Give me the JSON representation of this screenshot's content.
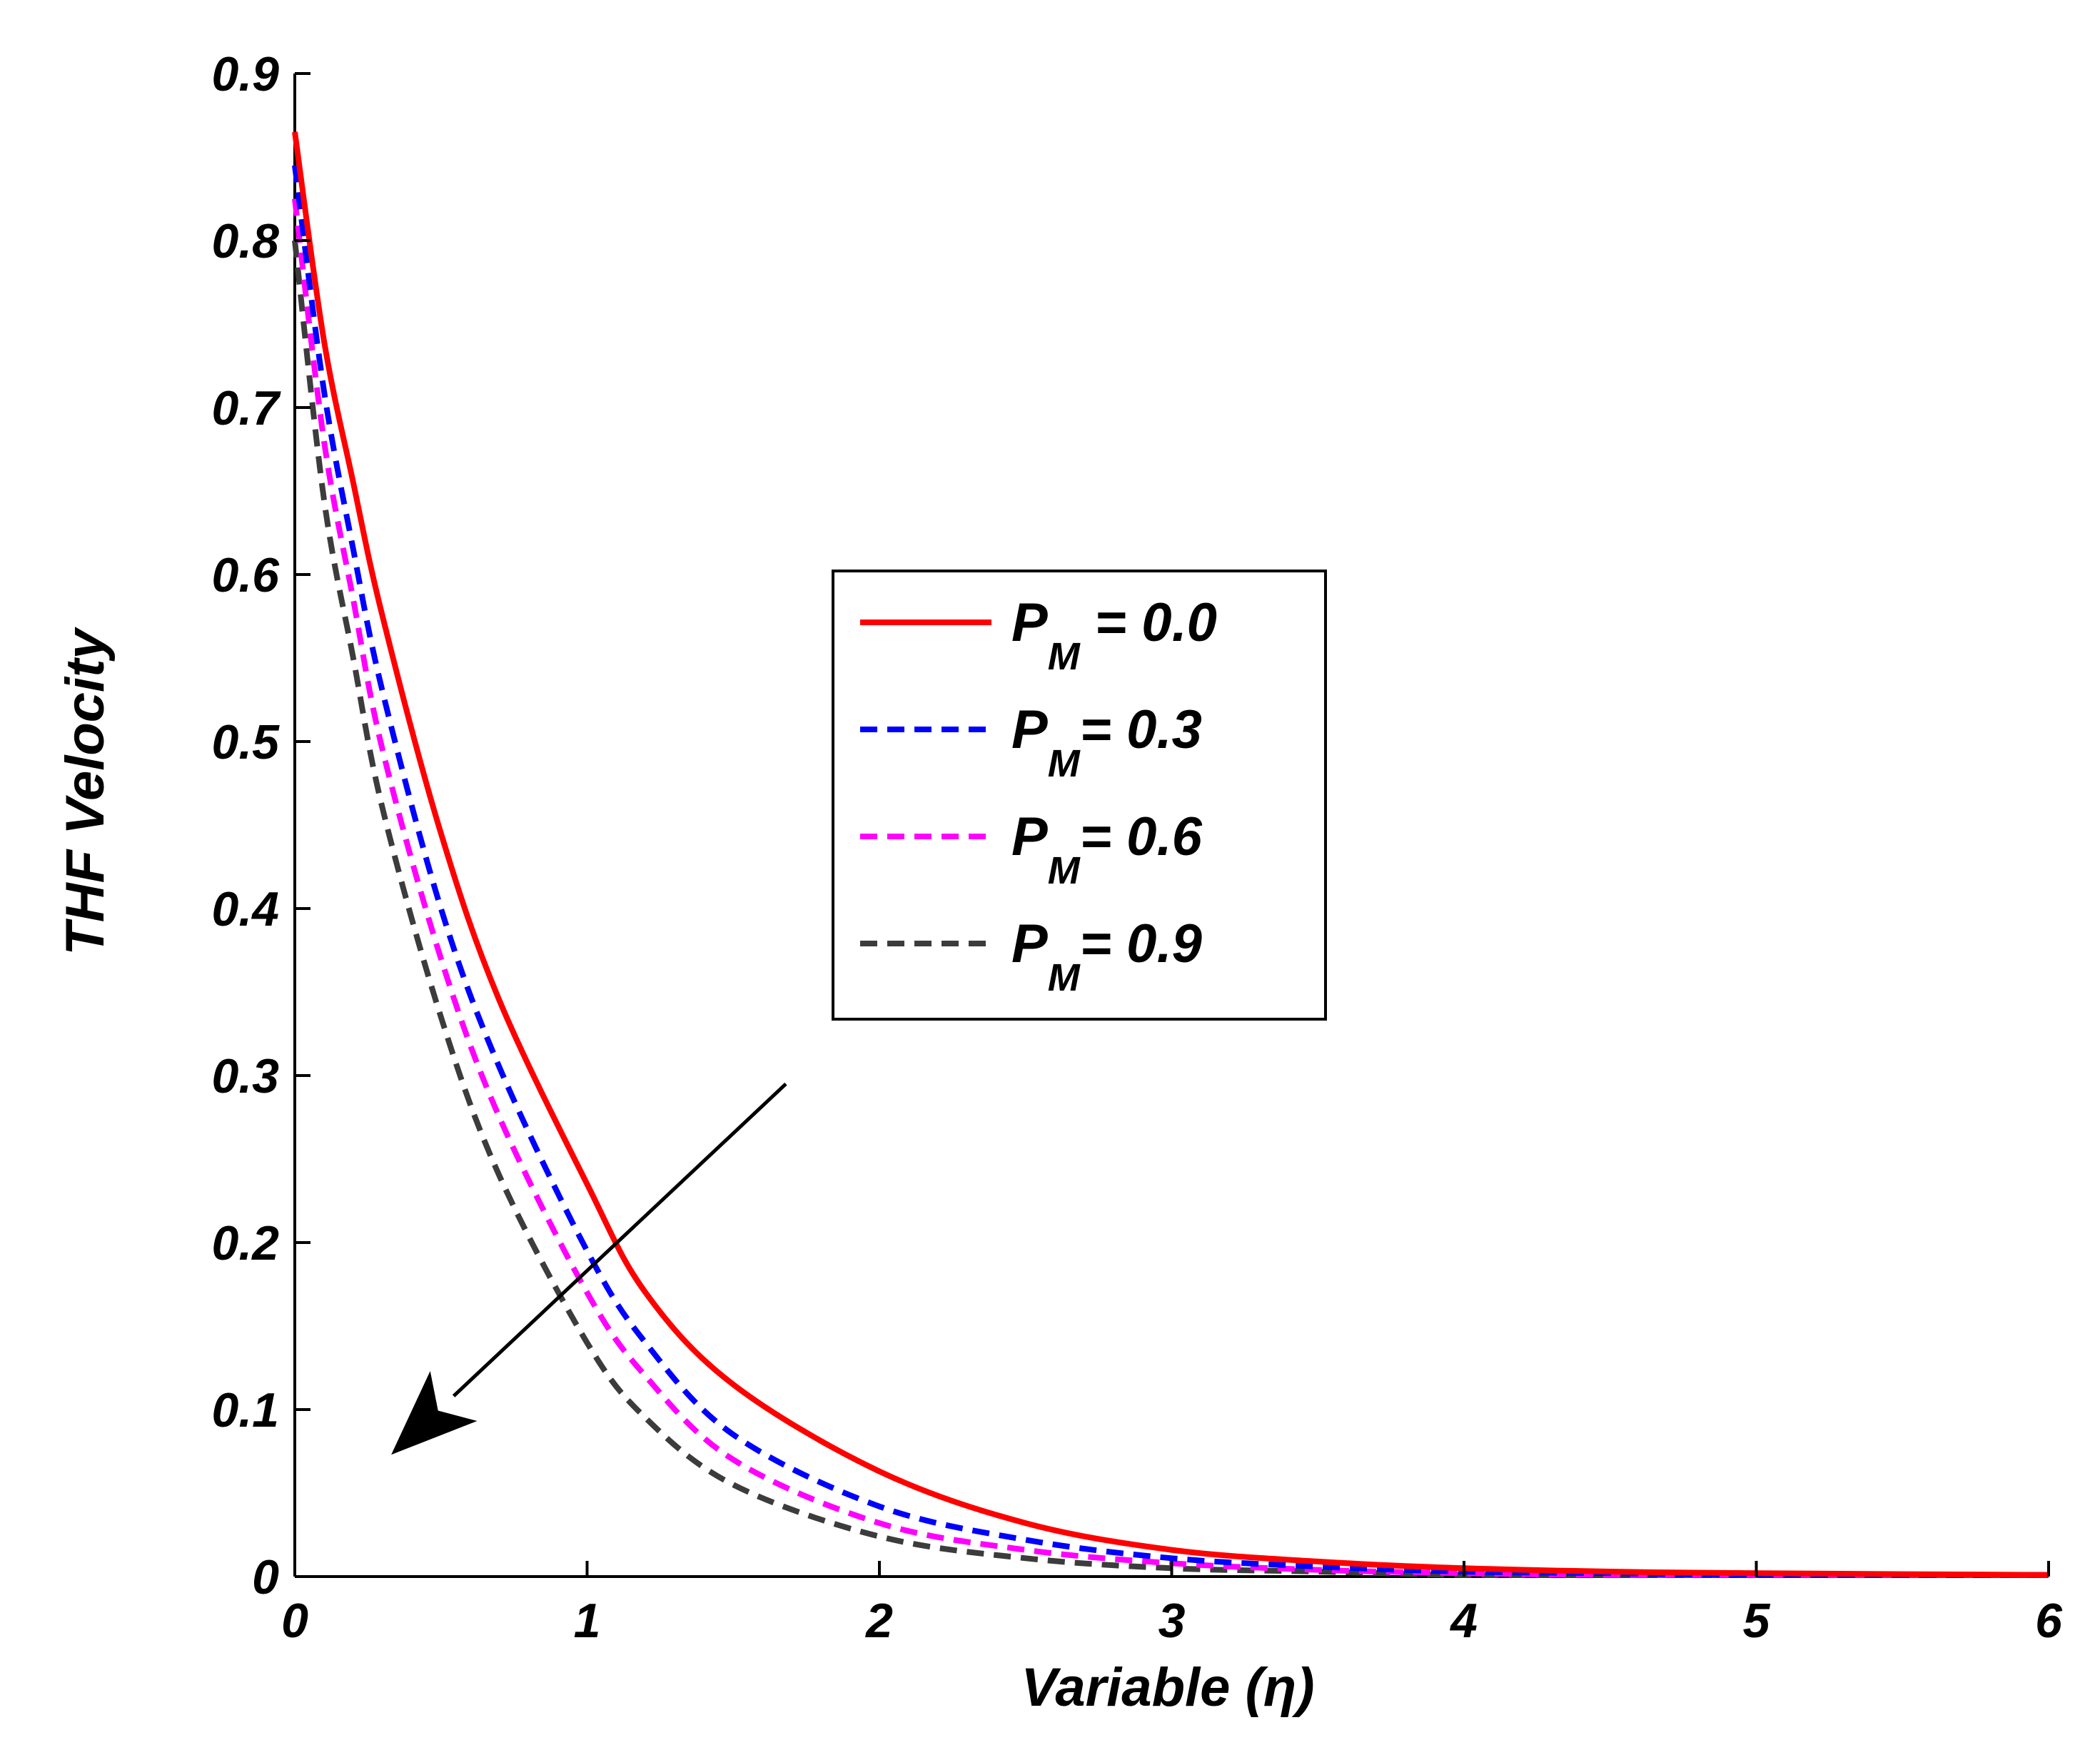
{
  "chart_data": {
    "type": "line",
    "title": "",
    "xlabel": "Variable (η)",
    "ylabel": "THF  Velocity",
    "xlim": [
      0,
      6
    ],
    "ylim": [
      0,
      0.9
    ],
    "xticks": [
      "0",
      "1",
      "2",
      "3",
      "4",
      "5",
      "6"
    ],
    "yticks": [
      "0",
      "0.1",
      "0.2",
      "0.3",
      "0.4",
      "0.5",
      "0.6",
      "0.7",
      "0.8",
      "0.9"
    ],
    "grid": false,
    "legend_position": "center-right",
    "series": [
      {
        "label_main": "P",
        "label_sub": "M",
        "label_rest": " = 0.0",
        "color": "#ff0000",
        "dash": "solid",
        "x": [
          0,
          0.1,
          0.2,
          0.3,
          0.5,
          0.7,
          1.0,
          1.2,
          1.5,
          2.0,
          2.5,
          3.0,
          3.5,
          4.0,
          4.5,
          5.0,
          6.0
        ],
        "y": [
          0.865,
          0.74,
          0.655,
          0.575,
          0.445,
          0.345,
          0.235,
          0.17,
          0.115,
          0.063,
          0.032,
          0.016,
          0.009,
          0.005,
          0.003,
          0.002,
          0.001
        ]
      },
      {
        "label_main": "P",
        "label_sub": "M",
        "label_rest": "= 0.3",
        "color": "#0000ff",
        "dash": "dashed",
        "x": [
          0,
          0.1,
          0.2,
          0.3,
          0.5,
          0.7,
          1.0,
          1.2,
          1.5,
          2.0,
          2.5,
          3.0,
          3.5,
          4.0,
          4.5,
          5.0,
          6.0
        ],
        "y": [
          0.845,
          0.71,
          0.615,
          0.53,
          0.4,
          0.305,
          0.195,
          0.14,
          0.085,
          0.042,
          0.022,
          0.011,
          0.006,
          0.003,
          0.002,
          0.001,
          0.001
        ]
      },
      {
        "label_main": "P",
        "label_sub": "M",
        "label_rest": "= 0.6",
        "color": "#ff00ff",
        "dash": "dashed",
        "x": [
          0,
          0.1,
          0.2,
          0.3,
          0.5,
          0.7,
          1.0,
          1.2,
          1.5,
          2.0,
          2.5,
          3.0,
          3.5,
          4.0,
          4.5,
          5.0,
          6.0
        ],
        "y": [
          0.825,
          0.68,
          0.585,
          0.495,
          0.37,
          0.275,
          0.17,
          0.12,
          0.07,
          0.032,
          0.016,
          0.008,
          0.004,
          0.002,
          0.001,
          0.001,
          0.001
        ]
      },
      {
        "label_main": "P",
        "label_sub": "M",
        "label_rest": "= 0.9",
        "color": "#3c3c3c",
        "dash": "dashed",
        "x": [
          0,
          0.1,
          0.2,
          0.3,
          0.5,
          0.7,
          1.0,
          1.2,
          1.5,
          2.0,
          2.5,
          3.0,
          3.5,
          4.0,
          4.5,
          5.0,
          6.0
        ],
        "y": [
          0.8,
          0.645,
          0.55,
          0.46,
          0.335,
          0.24,
          0.14,
          0.095,
          0.055,
          0.024,
          0.011,
          0.005,
          0.003,
          0.001,
          0.001,
          0.001,
          0.001
        ]
      }
    ],
    "annotations": [
      {
        "type": "arrow",
        "from": [
          1.68,
          0.295
        ],
        "to": [
          0.33,
          0.073
        ],
        "color": "#000000"
      }
    ]
  }
}
